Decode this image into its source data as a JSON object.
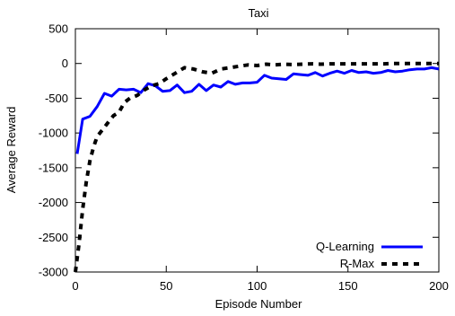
{
  "chart_data": {
    "type": "line",
    "title": "Taxi",
    "xlabel": "Episode Number",
    "ylabel": "Average Reward",
    "xlim": [
      0,
      200
    ],
    "ylim": [
      -3000,
      500
    ],
    "xticks": [
      0,
      50,
      100,
      150,
      200
    ],
    "yticks": [
      -3000,
      -2500,
      -2000,
      -1500,
      -1000,
      -500,
      0,
      500
    ],
    "grid": false,
    "legend_position": "bottom-right",
    "series": [
      {
        "name": "Q-Learning",
        "color": "#0000ff",
        "style": "solid",
        "x": [
          1,
          4,
          8,
          12,
          16,
          20,
          24,
          28,
          32,
          36,
          40,
          44,
          48,
          52,
          56,
          60,
          64,
          68,
          72,
          76,
          80,
          84,
          88,
          92,
          96,
          100,
          104,
          108,
          112,
          116,
          120,
          124,
          128,
          132,
          136,
          140,
          144,
          148,
          152,
          156,
          160,
          164,
          168,
          172,
          176,
          180,
          184,
          188,
          192,
          196,
          200
        ],
        "y": [
          -1300,
          -800,
          -760,
          -620,
          -430,
          -470,
          -370,
          -380,
          -370,
          -420,
          -290,
          -320,
          -400,
          -390,
          -310,
          -420,
          -400,
          -300,
          -390,
          -310,
          -340,
          -260,
          -300,
          -280,
          -280,
          -270,
          -170,
          -210,
          -220,
          -230,
          -150,
          -160,
          -170,
          -130,
          -180,
          -140,
          -110,
          -140,
          -100,
          -130,
          -120,
          -140,
          -130,
          -100,
          -120,
          -110,
          -90,
          -80,
          -80,
          -60,
          -80
        ]
      },
      {
        "name": "R-Max",
        "color": "#000000",
        "style": "dashed",
        "x": [
          0,
          2,
          4,
          6,
          8,
          10,
          12,
          15,
          18,
          21,
          24,
          27,
          30,
          34,
          38,
          42,
          46,
          50,
          55,
          60,
          65,
          70,
          75,
          80,
          85,
          90,
          95,
          100,
          105,
          110,
          115,
          120,
          125,
          130,
          135,
          140,
          145,
          150,
          155,
          160,
          165,
          170,
          175,
          180,
          185,
          190,
          195,
          200
        ],
        "y": [
          -3000,
          -2600,
          -2100,
          -1700,
          -1400,
          -1200,
          -1050,
          -950,
          -850,
          -750,
          -700,
          -560,
          -500,
          -460,
          -380,
          -320,
          -290,
          -220,
          -140,
          -60,
          -80,
          -120,
          -140,
          -80,
          -60,
          -40,
          -20,
          -30,
          -10,
          -20,
          -10,
          -15,
          -10,
          -5,
          -10,
          -5,
          -5,
          -5,
          -5,
          -5,
          -5,
          -5,
          0,
          0,
          0,
          0,
          0,
          0
        ]
      }
    ]
  }
}
